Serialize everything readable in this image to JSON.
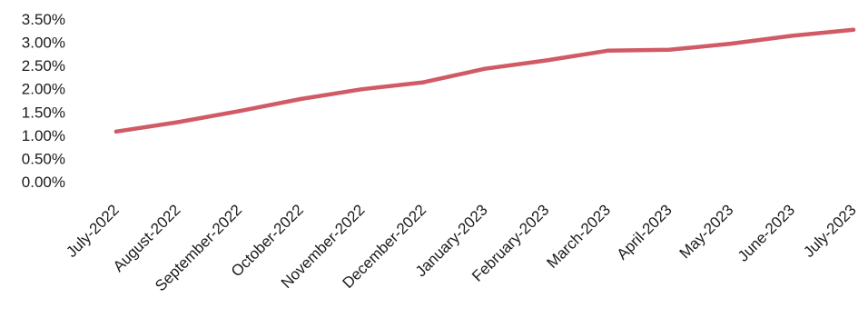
{
  "chart_data": {
    "type": "line",
    "title": "",
    "xlabel": "",
    "ylabel": "",
    "categories": [
      "July-2022",
      "August-2022",
      "September-2022",
      "October-2022",
      "November-2022",
      "December-2022",
      "January-2023",
      "February-2023",
      "March-2023",
      "April-2023",
      "May-2023",
      "June-2023",
      "July-2023"
    ],
    "series": [
      {
        "values": [
          0.0108,
          0.0128,
          0.0152,
          0.0178,
          0.0199,
          0.0214,
          0.0243,
          0.0261,
          0.0282,
          0.0284,
          0.0297,
          0.0314,
          0.0327
        ],
        "color": "#d05a66"
      }
    ],
    "yticks": [
      "3.50%",
      "3.00%",
      "2.50%",
      "2.00%",
      "1.50%",
      "1.00%",
      "0.50%",
      "0.00%"
    ],
    "ytick_values": [
      0.035,
      0.03,
      0.025,
      0.02,
      0.015,
      0.01,
      0.005,
      0
    ],
    "ylim": [
      0,
      0.035
    ],
    "grid": false,
    "legend": "none"
  }
}
